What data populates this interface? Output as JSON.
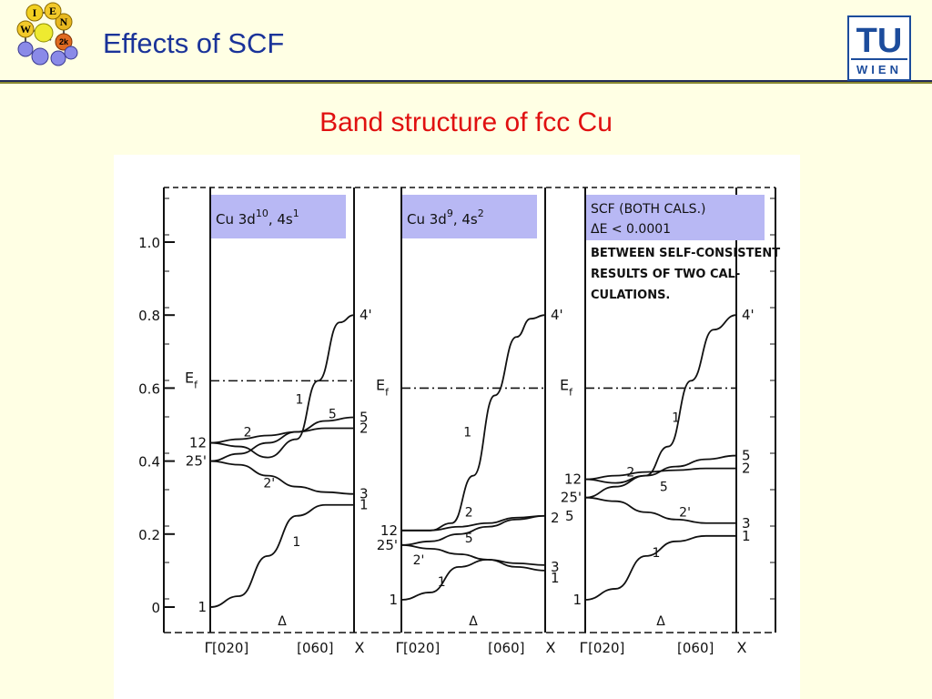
{
  "slide": {
    "title": "Effects of SCF",
    "subtitle": "Band structure of fcc Cu",
    "logo_letters": [
      "I",
      "E",
      "W",
      "N",
      "2k"
    ],
    "tu_logo": {
      "top": "TU",
      "bottom": "WIEN"
    },
    "colors": {
      "title": "#1a3399",
      "subtitle": "#e01010",
      "background": "#ffffe4",
      "highlight": "#b8b8f4"
    }
  },
  "chart_data": {
    "type": "line",
    "y_axis": {
      "range": [
        -0.03,
        1.14
      ],
      "ticks": [
        {
          "value": 1.0,
          "label": "1.0"
        },
        {
          "value": 0.8,
          "label": "0.8"
        },
        {
          "value": 0.6,
          "label": "0.6"
        },
        {
          "value": 0.4,
          "label": "0.4"
        },
        {
          "value": 0.2,
          "label": "0.2"
        },
        {
          "value": 0.0,
          "label": "0"
        }
      ]
    },
    "x_axis": {
      "range": [
        0,
        1
      ],
      "tick_labels": [
        "Γ",
        "[020]",
        "Δ",
        "[060]",
        "X"
      ]
    },
    "panels": [
      {
        "box_label": "Cu 3d",
        "box_sup1": "10",
        "box_mid": ", 4s",
        "box_sup2": "1",
        "fermi_level": 0.62,
        "fermi_label": "E",
        "fermi_sub": "f",
        "gamma_labels": [
          {
            "text": "12",
            "y": 0.45
          },
          {
            "text": "25'",
            "y": 0.4
          },
          {
            "text": "1",
            "y": 0.0
          }
        ],
        "x_labels": [
          {
            "text": "4'",
            "y": 0.8
          },
          {
            "text": "5",
            "y": 0.52
          },
          {
            "text": "2",
            "y": 0.49
          },
          {
            "text": "3",
            "y": 0.31
          },
          {
            "text": "1",
            "y": 0.28
          }
        ],
        "curve_labels": [
          {
            "text": "2",
            "x": 0.26,
            "y": 0.48
          },
          {
            "text": "2'",
            "x": 0.41,
            "y": 0.34
          },
          {
            "text": "1",
            "x": 0.62,
            "y": 0.57
          },
          {
            "text": "5",
            "x": 0.85,
            "y": 0.53
          },
          {
            "text": "1",
            "x": 0.6,
            "y": 0.18
          }
        ],
        "series": [
          {
            "name": "1",
            "x": [
              0,
              0.2,
              0.4,
              0.6,
              0.8,
              1
            ],
            "y": [
              0.0,
              0.03,
              0.14,
              0.25,
              0.28,
              0.28
            ]
          },
          {
            "name": "2'",
            "x": [
              0,
              0.2,
              0.4,
              0.6,
              0.8,
              1
            ],
            "y": [
              0.4,
              0.39,
              0.36,
              0.33,
              0.315,
              0.31
            ]
          },
          {
            "name": "1",
            "x": [
              0,
              0.2,
              0.4,
              0.6,
              0.75,
              0.9,
              1
            ],
            "y": [
              0.45,
              0.44,
              0.41,
              0.46,
              0.62,
              0.78,
              0.8
            ]
          },
          {
            "name": "2",
            "x": [
              0,
              0.2,
              0.4,
              0.6,
              0.8,
              1
            ],
            "y": [
              0.45,
              0.46,
              0.47,
              0.48,
              0.49,
              0.49
            ]
          },
          {
            "name": "5",
            "x": [
              0,
              0.2,
              0.4,
              0.6,
              0.8,
              1
            ],
            "y": [
              0.4,
              0.42,
              0.45,
              0.48,
              0.51,
              0.52
            ]
          }
        ]
      },
      {
        "box_label": "Cu 3d",
        "box_sup1": "9",
        "box_mid": ", 4s",
        "box_sup2": "2",
        "fermi_level": 0.6,
        "fermi_label": "E",
        "fermi_sub": "f",
        "gamma_labels": [
          {
            "text": "12",
            "y": 0.21
          },
          {
            "text": "25'",
            "y": 0.17
          },
          {
            "text": "1",
            "y": 0.02
          }
        ],
        "x_labels": [
          {
            "text": "4'",
            "y": 0.8
          },
          {
            "text": "2",
            "y": 0.245
          },
          {
            "text": "5",
            "y": 0.25
          },
          {
            "text": "3",
            "y": 0.11
          },
          {
            "text": "1",
            "y": 0.08
          }
        ],
        "curve_labels": [
          {
            "text": "2",
            "x": 0.47,
            "y": 0.26
          },
          {
            "text": "5",
            "x": 0.47,
            "y": 0.19
          },
          {
            "text": "2'",
            "x": 0.12,
            "y": 0.13
          },
          {
            "text": "1",
            "x": 0.28,
            "y": 0.07
          },
          {
            "text": "1",
            "x": 0.46,
            "y": 0.48
          }
        ],
        "series": [
          {
            "name": "1",
            "x": [
              0,
              0.2,
              0.4,
              0.6,
              0.8,
              1
            ],
            "y": [
              0.02,
              0.04,
              0.11,
              0.13,
              0.11,
              0.1
            ]
          },
          {
            "name": "2'",
            "x": [
              0,
              0.2,
              0.4,
              0.6,
              0.8,
              1
            ],
            "y": [
              0.17,
              0.16,
              0.145,
              0.13,
              0.12,
              0.115
            ]
          },
          {
            "name": "1",
            "x": [
              0,
              0.2,
              0.35,
              0.5,
              0.65,
              0.8,
              0.9,
              1
            ],
            "y": [
              0.21,
              0.21,
              0.23,
              0.36,
              0.58,
              0.74,
              0.79,
              0.8
            ]
          },
          {
            "name": "2",
            "x": [
              0,
              0.2,
              0.4,
              0.6,
              0.8,
              1
            ],
            "y": [
              0.21,
              0.21,
              0.22,
              0.23,
              0.245,
              0.25
            ]
          },
          {
            "name": "5",
            "x": [
              0,
              0.2,
              0.4,
              0.6,
              0.8,
              1
            ],
            "y": [
              0.17,
              0.18,
              0.2,
              0.22,
              0.24,
              0.25
            ]
          }
        ]
      },
      {
        "box_label": "SCF (BOTH CALS.)",
        "box_line2": "ΔE < 0.0001",
        "note_lines": [
          "BETWEEN SELF-CONSISTENT",
          "RESULTS OF TWO CAL-",
          "CULATIONS."
        ],
        "fermi_level": 0.6,
        "fermi_label": "E",
        "fermi_sub": "f",
        "gamma_labels": [
          {
            "text": "12",
            "y": 0.35
          },
          {
            "text": "25'",
            "y": 0.3
          },
          {
            "text": "1",
            "y": 0.02
          }
        ],
        "x_labels": [
          {
            "text": "4'",
            "y": 0.8
          },
          {
            "text": "5",
            "y": 0.415
          },
          {
            "text": "2",
            "y": 0.38
          },
          {
            "text": "3",
            "y": 0.23
          },
          {
            "text": "1",
            "y": 0.195
          }
        ],
        "curve_labels": [
          {
            "text": "2",
            "x": 0.3,
            "y": 0.37
          },
          {
            "text": "5",
            "x": 0.52,
            "y": 0.33
          },
          {
            "text": "2'",
            "x": 0.66,
            "y": 0.26
          },
          {
            "text": "1",
            "x": 0.47,
            "y": 0.15
          },
          {
            "text": "1",
            "x": 0.6,
            "y": 0.52
          }
        ],
        "series": [
          {
            "name": "1",
            "x": [
              0,
              0.2,
              0.4,
              0.6,
              0.8,
              1
            ],
            "y": [
              0.02,
              0.05,
              0.14,
              0.18,
              0.195,
              0.195
            ]
          },
          {
            "name": "2'",
            "x": [
              0,
              0.2,
              0.4,
              0.6,
              0.8,
              1
            ],
            "y": [
              0.3,
              0.29,
              0.26,
              0.24,
              0.23,
              0.23
            ]
          },
          {
            "name": "1",
            "x": [
              0,
              0.2,
              0.4,
              0.55,
              0.7,
              0.85,
              1
            ],
            "y": [
              0.35,
              0.34,
              0.36,
              0.44,
              0.62,
              0.76,
              0.8
            ]
          },
          {
            "name": "2",
            "x": [
              0,
              0.2,
              0.4,
              0.6,
              0.8,
              1
            ],
            "y": [
              0.35,
              0.36,
              0.37,
              0.375,
              0.38,
              0.38
            ]
          },
          {
            "name": "5",
            "x": [
              0,
              0.2,
              0.4,
              0.6,
              0.8,
              1
            ],
            "y": [
              0.3,
              0.33,
              0.36,
              0.385,
              0.405,
              0.415
            ]
          }
        ]
      }
    ]
  }
}
